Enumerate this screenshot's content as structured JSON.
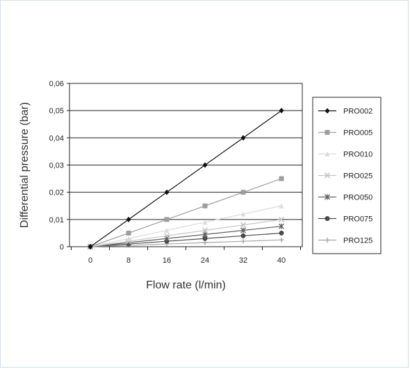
{
  "chart_data": {
    "type": "line",
    "xlabel": "Flow rate (l/min)",
    "ylabel": "Differential pressure (bar)",
    "x": [
      0,
      8,
      16,
      24,
      32,
      40
    ],
    "x_ticks": [
      "0",
      "8",
      "16",
      "24",
      "32",
      "40"
    ],
    "ylim": [
      0,
      0.06
    ],
    "y_ticks": [
      "0",
      "0,01",
      "0,02",
      "0,03",
      "0,04",
      "0,05",
      "0,06"
    ],
    "grid": "horizontal",
    "legend_position": "right",
    "series": [
      {
        "name": "PRO002",
        "values": [
          0,
          0.01,
          0.02,
          0.03,
          0.04,
          0.05
        ],
        "color": "#111111",
        "marker": "diamond"
      },
      {
        "name": "PRO005",
        "values": [
          0,
          0.005,
          0.01,
          0.015,
          0.02,
          0.025
        ],
        "color": "#9e9e9e",
        "marker": "square"
      },
      {
        "name": "PRO010",
        "values": [
          0,
          0.003,
          0.006,
          0.009,
          0.012,
          0.015
        ],
        "color": "#dcdcdc",
        "marker": "triangle"
      },
      {
        "name": "PRO025",
        "values": [
          0,
          0.002,
          0.004,
          0.006,
          0.008,
          0.01
        ],
        "color": "#c4c4c4",
        "marker": "x"
      },
      {
        "name": "PRO050",
        "values": [
          0,
          0.0015,
          0.003,
          0.0045,
          0.006,
          0.0075
        ],
        "color": "#606060",
        "marker": "asterisk"
      },
      {
        "name": "PRO075",
        "values": [
          0,
          0.001,
          0.002,
          0.003,
          0.004,
          0.005
        ],
        "color": "#4a4a4a",
        "marker": "circle"
      },
      {
        "name": "PRO125",
        "values": [
          0,
          0.0005,
          0.001,
          0.0015,
          0.002,
          0.0025
        ],
        "color": "#a5a5a5",
        "marker": "plus"
      }
    ]
  }
}
